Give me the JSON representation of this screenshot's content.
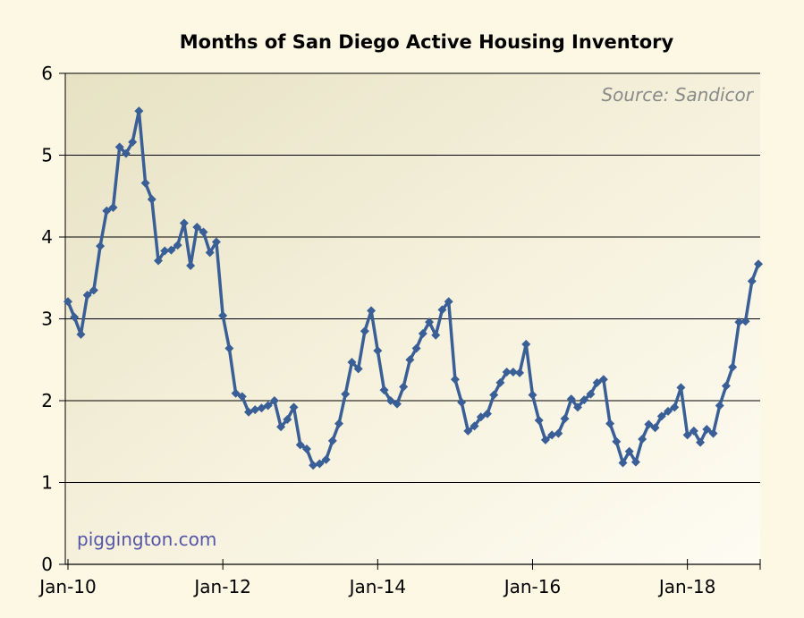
{
  "chart_data": {
    "type": "line",
    "title": "Months of San Diego Active Housing Inventory",
    "source_note": "Source: Sandicor",
    "watermark": "piggington.com",
    "xlabel": "",
    "ylabel": "",
    "ylim": [
      0,
      6
    ],
    "y_ticks": [
      "0",
      "1",
      "2",
      "3",
      "4",
      "5",
      "6"
    ],
    "x_ticks": [
      "Jan-10",
      "Jan-12",
      "Jan-14",
      "Jan-16",
      "Jan-18"
    ],
    "x_start": "Jan-10",
    "grid": true,
    "line_color": "#3a5f96",
    "marker": "diamond",
    "series": [
      {
        "values": [
          3.21,
          3.02,
          2.81,
          3.29,
          3.35,
          3.89,
          4.32,
          4.36,
          5.1,
          5.02,
          5.16,
          5.54,
          4.66,
          4.46,
          3.71,
          3.83,
          3.84,
          3.9,
          4.17,
          3.65,
          4.12,
          4.06,
          3.81,
          3.94,
          3.04,
          2.64,
          2.09,
          2.05,
          1.86,
          1.89,
          1.91,
          1.94,
          2.0,
          1.68,
          1.77,
          1.92,
          1.46,
          1.41,
          1.21,
          1.23,
          1.28,
          1.51,
          1.72,
          2.08,
          2.47,
          2.39,
          2.85,
          3.1,
          2.61,
          2.13,
          2.0,
          1.96,
          2.17,
          2.5,
          2.64,
          2.82,
          2.96,
          2.8,
          3.11,
          3.21,
          2.26,
          1.98,
          1.63,
          1.69,
          1.8,
          1.84,
          2.07,
          2.22,
          2.35,
          2.35,
          2.34,
          2.69,
          2.07,
          1.76,
          1.52,
          1.58,
          1.6,
          1.78,
          2.02,
          1.92,
          2.01,
          2.08,
          2.22,
          2.26,
          1.72,
          1.5,
          1.24,
          1.38,
          1.25,
          1.53,
          1.71,
          1.67,
          1.81,
          1.87,
          1.92,
          2.16,
          1.58,
          1.63,
          1.49,
          1.65,
          1.6,
          1.94,
          2.18,
          2.41,
          2.96,
          2.97,
          3.46,
          3.67
        ]
      }
    ]
  }
}
